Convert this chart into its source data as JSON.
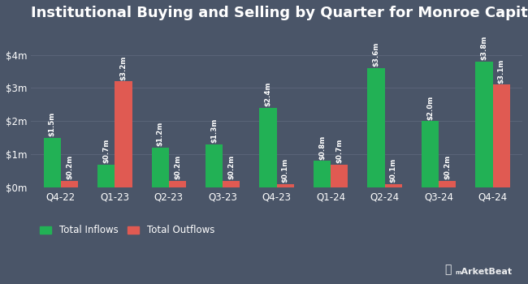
{
  "title": "Institutional Buying and Selling by Quarter for Monroe Capital",
  "categories": [
    "Q4-22",
    "Q1-23",
    "Q2-23",
    "Q3-23",
    "Q4-23",
    "Q1-24",
    "Q2-24",
    "Q3-24",
    "Q4-24"
  ],
  "inflows": [
    1.5,
    0.7,
    1.2,
    1.3,
    2.4,
    0.8,
    3.6,
    2.0,
    3.8
  ],
  "outflows": [
    0.2,
    3.2,
    0.2,
    0.2,
    0.1,
    0.7,
    0.1,
    0.2,
    3.1
  ],
  "inflow_labels": [
    "$1.5m",
    "$0.7m",
    "$1.2m",
    "$1.3m",
    "$2.4m",
    "$0.8m",
    "$3.6m",
    "$2.0m",
    "$3.8m"
  ],
  "outflow_labels": [
    "$0.2m",
    "$3.2m",
    "$0.2m",
    "$0.2m",
    "$0.1m",
    "$0.7m",
    "$0.1m",
    "$0.2m",
    "$3.1m"
  ],
  "inflow_color": "#22b155",
  "outflow_color": "#e05a52",
  "background_color": "#4a5568",
  "plot_bg_color": "#4a5568",
  "text_color": "#ffffff",
  "grid_color": "#5a6478",
  "title_fontsize": 13,
  "label_fontsize": 6.2,
  "tick_fontsize": 8.5,
  "legend_fontsize": 8.5,
  "ylim": [
    0,
    4.8
  ],
  "yticks": [
    0,
    1,
    2,
    3,
    4
  ],
  "ytick_labels": [
    "$0m",
    "$1m",
    "$2m",
    "$3m",
    "$4m"
  ],
  "bar_width": 0.32,
  "legend_labels": [
    "Total Inflows",
    "Total Outflows"
  ]
}
